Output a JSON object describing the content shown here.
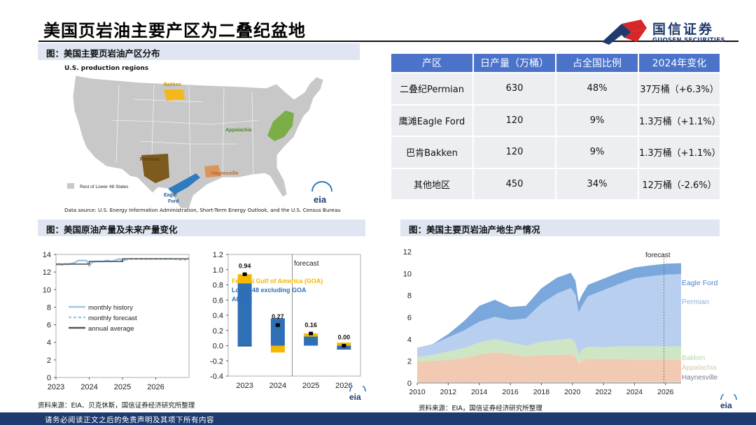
{
  "page": {
    "title": "美国页岩油主要产区为二叠纪盆地",
    "footer": "请务必阅读正文之后的免责声明及其项下所有内容"
  },
  "logo": {
    "name_cn": "国信证券",
    "name_en": "GUOSEN SECURITIES"
  },
  "sections": {
    "map_title": "图：美国主要页岩油产区分布",
    "production_title": "图：美国原油产量及未来产量变化",
    "regions_title": "图：美国主要页岩油产地生产情况"
  },
  "map": {
    "heading": "U.S. production regions",
    "legend_other": "Rest of Lower 48 States",
    "source": "Data source: U.S. Energy Information Administration, Short-Term Energy Outlook, and the U.S. Census Bureau",
    "labels": {
      "bakken": "Bakken",
      "appalachia": "Appalachia",
      "permian": "Permian",
      "haynesville": "Haynesville",
      "eagle": "Eagle",
      "ford": "Ford"
    },
    "eia_logo": "eia",
    "colors": {
      "land": "#c8c8c8",
      "bakken": "#f2b81d",
      "appalachia": "#7cae48",
      "permian": "#7d5a1e",
      "haynesville": "#d9955a",
      "eagle_ford": "#2f7bbf"
    }
  },
  "table": {
    "headers": [
      "产区",
      "日产量（万桶）",
      "占全国比例",
      "2024年变化"
    ],
    "rows": [
      [
        "二叠纪Permian",
        "630",
        "48%",
        "37万桶（+6.3%）"
      ],
      [
        "鹰滩Eagle Ford",
        "120",
        "9%",
        "1.3万桶（+1.1%）"
      ],
      [
        "巴肯Bakken",
        "120",
        "9%",
        "1.3万桶（+1.1%）"
      ],
      [
        "其他地区",
        "450",
        "34%",
        "12万桶（-2.6%）"
      ]
    ]
  },
  "sources": {
    "left": "资料来源：EIA、贝克休斯，国信证券经济研究所整理",
    "right": "资料来源：EIA，国信证券经济研究所整理",
    "eia_mark": "eia"
  },
  "chart_data": [
    {
      "type": "line",
      "id": "us-crude-production",
      "ylim": [
        0,
        14
      ],
      "yticks": [
        "0",
        "2",
        "4",
        "6",
        "8",
        "10",
        "12",
        "14"
      ],
      "xtick_labels": [
        "2023",
        "2024",
        "2025",
        "2026"
      ],
      "x_range": [
        2023,
        2027
      ],
      "legend": [
        "monthly history",
        "monthly forecast",
        "annual average"
      ],
      "colors": {
        "history": "#9cc8e6",
        "forecast": "#9cc8e6",
        "annual": "#555555"
      },
      "series": [
        {
          "name": "monthly history",
          "x": [
            2023.0,
            2023.08,
            2023.17,
            2023.25,
            2023.33,
            2023.42,
            2023.5,
            2023.58,
            2023.67,
            2023.75,
            2023.83,
            2023.92,
            2024.0,
            2024.08,
            2024.17,
            2024.25,
            2024.33,
            2024.42,
            2024.5,
            2024.58,
            2024.67,
            2024.75,
            2024.83,
            2024.92,
            2025.0,
            2025.08
          ],
          "values": [
            12.8,
            12.9,
            12.8,
            12.9,
            12.9,
            12.9,
            13.0,
            13.1,
            13.3,
            13.3,
            13.3,
            13.3,
            12.7,
            13.1,
            13.2,
            13.2,
            13.2,
            13.2,
            13.3,
            13.3,
            13.2,
            13.3,
            13.4,
            13.5,
            13.2,
            13.4
          ]
        },
        {
          "name": "monthly forecast",
          "x": [
            2025.08,
            2025.25,
            2025.5,
            2025.75,
            2026.0,
            2026.25,
            2026.5,
            2026.75,
            2026.92
          ],
          "values": [
            13.4,
            13.5,
            13.5,
            13.5,
            13.5,
            13.5,
            13.5,
            13.4,
            13.4
          ]
        },
        {
          "name": "annual average",
          "x": [
            2023.0,
            2024.0,
            2024.0,
            2025.0,
            2025.0,
            2026.0,
            2026.0,
            2027.0
          ],
          "values": [
            12.9,
            12.9,
            13.2,
            13.2,
            13.5,
            13.5,
            13.5,
            13.5
          ]
        }
      ]
    },
    {
      "type": "bar",
      "id": "annual-production-change",
      "categories": [
        "2023",
        "2024",
        "2025",
        "2026"
      ],
      "ylim": [
        -0.4,
        1.2
      ],
      "yticks": [
        "-0.4",
        "-0.2",
        "0.0",
        "0.2",
        "0.4",
        "0.6",
        "0.8",
        "1.0",
        "1.2"
      ],
      "annotation": "forecast",
      "legend": [
        "Federal Gulf of America (GOA)",
        "Lower 48 excluding GOA",
        "Alaska"
      ],
      "colors": {
        "goa": "#f5b700",
        "lower48": "#2f6fb5",
        "alaska": "#1f3a6e"
      },
      "series": [
        {
          "name": "Federal Gulf of America (GOA)",
          "values": [
            0.12,
            -0.09,
            0.04,
            0.04
          ]
        },
        {
          "name": "Lower 48 excluding GOA",
          "values": [
            0.82,
            0.36,
            0.12,
            -0.04
          ]
        },
        {
          "name": "Alaska",
          "values": [
            -0.01,
            0.0,
            0.0,
            -0.01
          ]
        }
      ],
      "totals": [
        0.94,
        0.27,
        0.16,
        0.0
      ],
      "total_labels": [
        "0.94",
        "0.27",
        "0.16",
        "0.00"
      ]
    },
    {
      "type": "area",
      "id": "shale-region-production",
      "ylim": [
        0,
        12
      ],
      "yticks": [
        "0",
        "2",
        "4",
        "6",
        "8",
        "10",
        "12"
      ],
      "xticks": [
        "2010",
        "2012",
        "2014",
        "2016",
        "2018",
        "2020",
        "2022",
        "2024",
        "2026"
      ],
      "x_range": [
        2010,
        2027
      ],
      "annotation": "forecast",
      "forecast_start": 2025.0,
      "x": [
        2010.0,
        2011.0,
        2012.0,
        2013.0,
        2014.0,
        2015.0,
        2016.0,
        2017.0,
        2018.0,
        2019.0,
        2019.9,
        2020.2,
        2020.4,
        2020.6,
        2021.0,
        2022.0,
        2023.0,
        2024.0,
        2025.0,
        2026.0,
        2027.0
      ],
      "series": [
        {
          "name": "Haynesville",
          "values": [
            0.05,
            0.05,
            0.05,
            0.05,
            0.05,
            0.05,
            0.05,
            0.05,
            0.05,
            0.05,
            0.05,
            0.05,
            0.05,
            0.05,
            0.05,
            0.05,
            0.05,
            0.05,
            0.05,
            0.05,
            0.05
          ]
        },
        {
          "name": "Appalachia",
          "values": [
            0.03,
            0.03,
            0.03,
            0.04,
            0.05,
            0.05,
            0.05,
            0.05,
            0.06,
            0.07,
            0.07,
            0.07,
            0.07,
            0.07,
            0.07,
            0.08,
            0.09,
            0.1,
            0.1,
            0.1,
            0.1
          ]
        },
        {
          "name": "Eagle Ford",
          "values": [
            1.9,
            1.95,
            2.05,
            2.2,
            2.5,
            2.7,
            2.55,
            2.3,
            2.45,
            2.45,
            2.5,
            2.3,
            1.6,
            1.9,
            2.1,
            2.05,
            2.05,
            2.0,
            2.0,
            2.0,
            2.0
          ]
        },
        {
          "name": "Bakken",
          "values": [
            0.4,
            0.55,
            0.75,
            0.9,
            1.1,
            1.2,
            1.05,
            1.0,
            1.2,
            1.35,
            1.45,
            1.25,
            0.85,
            1.05,
            1.1,
            1.1,
            1.15,
            1.2,
            1.2,
            1.2,
            1.2
          ]
        },
        {
          "name": "Permian",
          "values": [
            0.85,
            0.95,
            1.3,
            1.6,
            1.9,
            2.05,
            2.05,
            2.5,
            3.5,
            4.25,
            4.6,
            4.4,
            3.85,
            3.95,
            4.6,
            5.2,
            5.7,
            6.2,
            6.4,
            6.55,
            6.6
          ]
        },
        {
          "name": "Eagle Ford",
          "values": [
            0.0,
            0.02,
            0.3,
            0.85,
            1.45,
            1.55,
            1.2,
            1.15,
            1.4,
            1.45,
            1.4,
            1.25,
            0.95,
            1.0,
            1.05,
            1.05,
            1.05,
            1.0,
            1.0,
            1.0,
            1.0
          ]
        }
      ],
      "series_labels": [
        "Eagle Ford",
        "Permian",
        "Bakken",
        "Appalachia",
        "Haynesville"
      ],
      "colors": {
        "haynesville": "#8a8aa0",
        "appalachia": "#e9d9c8",
        "eagle_base": "#f2c9b2",
        "bakken": "#cfe6c4",
        "permian": "#b9cff0",
        "eagle_top": "#7aa8dc"
      }
    }
  ]
}
